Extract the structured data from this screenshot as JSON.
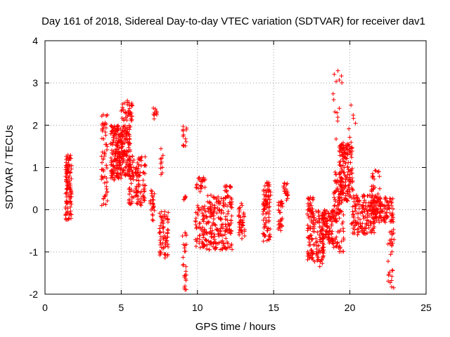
{
  "chart_data": {
    "type": "scatter",
    "title": "Day 161 of 2018, Sidereal Day-to-day VTEC variation (SDTVAR) for receiver dav1",
    "xlabel": "GPS time / hours",
    "ylabel": "SDTVAR / TECUs",
    "xlim": [
      0,
      25
    ],
    "ylim": [
      -2,
      4
    ],
    "xticks": [
      "0",
      "5",
      "10",
      "15",
      "20",
      "25"
    ],
    "yticks": [
      "-2",
      "-1",
      "0",
      "1",
      "2",
      "3",
      "4"
    ],
    "grid": true,
    "marker": "+",
    "color": "#ff0000",
    "clusters": [
      {
        "x": [
          1.35,
          1.75
        ],
        "y": [
          -0.25,
          1.3
        ],
        "n": 110
      },
      {
        "x": [
          3.7,
          4.1
        ],
        "y": [
          0.1,
          2.3
        ],
        "n": 60
      },
      {
        "x": [
          4.3,
          5.0
        ],
        "y": [
          0.7,
          2.0
        ],
        "n": 150
      },
      {
        "x": [
          4.9,
          5.6
        ],
        "y": [
          0.8,
          2.0
        ],
        "n": 130
      },
      {
        "x": [
          5.0,
          5.75
        ],
        "y": [
          2.1,
          2.6
        ],
        "n": 40
      },
      {
        "x": [
          5.5,
          6.6
        ],
        "y": [
          0.1,
          1.3
        ],
        "n": 120
      },
      {
        "x": [
          6.9,
          7.2
        ],
        "y": [
          -0.3,
          0.5
        ],
        "n": 25
      },
      {
        "x": [
          7.1,
          7.35
        ],
        "y": [
          2.15,
          2.45
        ],
        "n": 10
      },
      {
        "x": [
          7.5,
          8.1
        ],
        "y": [
          -1.15,
          0.0
        ],
        "n": 70
      },
      {
        "x": [
          7.55,
          7.75
        ],
        "y": [
          0.8,
          1.5
        ],
        "n": 10
      },
      {
        "x": [
          9.0,
          9.3
        ],
        "y": [
          -1.9,
          -0.5
        ],
        "n": 25
      },
      {
        "x": [
          9.05,
          9.3
        ],
        "y": [
          1.5,
          2.0
        ],
        "n": 15
      },
      {
        "x": [
          9.1,
          9.3
        ],
        "y": [
          0.2,
          0.4
        ],
        "n": 6
      },
      {
        "x": [
          9.8,
          10.6
        ],
        "y": [
          -0.9,
          0.1
        ],
        "n": 70
      },
      {
        "x": [
          9.9,
          10.5
        ],
        "y": [
          0.4,
          0.8
        ],
        "n": 25
      },
      {
        "x": [
          10.6,
          12.3
        ],
        "y": [
          -0.95,
          0.35
        ],
        "n": 190
      },
      {
        "x": [
          11.8,
          12.2
        ],
        "y": [
          0.3,
          0.6
        ],
        "n": 15
      },
      {
        "x": [
          12.7,
          13.1
        ],
        "y": [
          -0.7,
          0.15
        ],
        "n": 40
      },
      {
        "x": [
          14.3,
          14.8
        ],
        "y": [
          -0.75,
          0.65
        ],
        "n": 90
      },
      {
        "x": [
          15.3,
          15.6
        ],
        "y": [
          -0.5,
          0.2
        ],
        "n": 30
      },
      {
        "x": [
          15.65,
          15.95
        ],
        "y": [
          0.2,
          0.65
        ],
        "n": 20
      },
      {
        "x": [
          17.2,
          17.6
        ],
        "y": [
          -1.2,
          0.3
        ],
        "n": 80
      },
      {
        "x": [
          17.6,
          18.3
        ],
        "y": [
          -1.35,
          0.0
        ],
        "n": 90
      },
      {
        "x": [
          18.2,
          18.9
        ],
        "y": [
          -0.8,
          0.0
        ],
        "n": 90
      },
      {
        "x": [
          18.9,
          19.6
        ],
        "y": [
          -1.0,
          0.9
        ],
        "n": 100
      },
      {
        "x": [
          19.3,
          20.2
        ],
        "y": [
          0.2,
          1.6
        ],
        "n": 160
      },
      {
        "x": [
          18.9,
          19.5
        ],
        "y": [
          1.6,
          3.3
        ],
        "n": 14
      },
      {
        "x": [
          19.9,
          20.5
        ],
        "y": [
          1.6,
          2.55
        ],
        "n": 6
      },
      {
        "x": [
          20.1,
          21.6
        ],
        "y": [
          -0.6,
          0.35
        ],
        "n": 160
      },
      {
        "x": [
          21.4,
          22.0
        ],
        "y": [
          -0.2,
          0.95
        ],
        "n": 30
      },
      {
        "x": [
          21.5,
          22.85
        ],
        "y": [
          -0.3,
          0.3
        ],
        "n": 120
      },
      {
        "x": [
          22.5,
          22.9
        ],
        "y": [
          -1.95,
          -0.2
        ],
        "n": 30
      }
    ]
  }
}
